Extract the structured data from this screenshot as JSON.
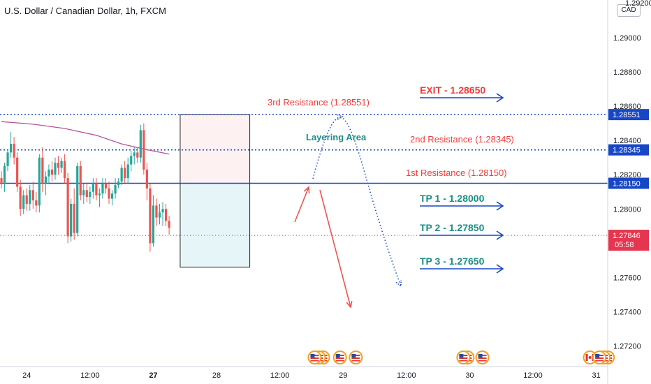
{
  "title": "U.S. Dollar / Canadian Dollar, 1h, FXCM",
  "currency_badge": "CAD",
  "top_partial_tick": "1.29200",
  "colors": {
    "up": "#26a69a",
    "down": "#ef5350",
    "resistance_text": "#ef3d3d",
    "tp_text": "#1b8e86",
    "arrow_blue": "#1847c5",
    "ma": "#b5559a",
    "price_label": "#e5354f",
    "level_label": "#1847c5",
    "upper_zone": "#fdf1f1",
    "lower_zone": "#e6f6f8"
  },
  "chart_data": {
    "type": "candlestick",
    "title": "U.S. Dollar / Canadian Dollar, 1h, FXCM",
    "ylim": [
      1.2708,
      1.2922
    ],
    "y_ticks": [
      {
        "v": 1.29,
        "label": "1.29000"
      },
      {
        "v": 1.288,
        "label": "1.28800"
      },
      {
        "v": 1.286,
        "label": "1.28600"
      },
      {
        "v": 1.284,
        "label": "1.28400"
      },
      {
        "v": 1.282,
        "label": "1.28200"
      },
      {
        "v": 1.28,
        "label": "1.28000"
      },
      {
        "v": 1.278,
        "label": "1.27800"
      },
      {
        "v": 1.276,
        "label": "1.27600"
      },
      {
        "v": 1.274,
        "label": "1.27400"
      },
      {
        "v": 1.272,
        "label": "1.27200"
      }
    ],
    "x_ticks": [
      {
        "i": 8,
        "label": "24",
        "bold": false
      },
      {
        "i": 28,
        "label": "12:00",
        "bold": false
      },
      {
        "i": 48,
        "label": "27",
        "bold": true
      },
      {
        "i": 68,
        "label": "28",
        "bold": false
      },
      {
        "i": 88,
        "label": "12:00",
        "bold": false
      },
      {
        "i": 108,
        "label": "29",
        "bold": false
      },
      {
        "i": 128,
        "label": "12:00",
        "bold": false
      },
      {
        "i": 148,
        "label": "30",
        "bold": false
      },
      {
        "i": 168,
        "label": "12:00",
        "bold": false
      },
      {
        "i": 188,
        "label": "31",
        "bold": false
      }
    ],
    "candles": [
      [
        1.2818,
        1.2822,
        1.2812,
        1.2815
      ],
      [
        1.2815,
        1.2827,
        1.281,
        1.2825
      ],
      [
        1.2825,
        1.2835,
        1.2822,
        1.2833
      ],
      [
        1.2833,
        1.2845,
        1.283,
        1.2838
      ],
      [
        1.2838,
        1.2842,
        1.2826,
        1.283
      ],
      [
        1.283,
        1.2833,
        1.281,
        1.2813
      ],
      [
        1.2813,
        1.2817,
        1.2796,
        1.28
      ],
      [
        1.28,
        1.2811,
        1.2797,
        1.2808
      ],
      [
        1.2808,
        1.2812,
        1.2799,
        1.2803
      ],
      [
        1.2803,
        1.2814,
        1.2799,
        1.2811
      ],
      [
        1.2811,
        1.2816,
        1.28,
        1.2805
      ],
      [
        1.2805,
        1.281,
        1.2798,
        1.2802
      ],
      [
        1.2802,
        1.2832,
        1.2798,
        1.283
      ],
      [
        1.283,
        1.2836,
        1.281,
        1.2815
      ],
      [
        1.2815,
        1.2822,
        1.2808,
        1.2819
      ],
      [
        1.2819,
        1.2826,
        1.2815,
        1.2823
      ],
      [
        1.2823,
        1.2828,
        1.2816,
        1.282
      ],
      [
        1.282,
        1.283,
        1.2817,
        1.2827
      ],
      [
        1.2827,
        1.2831,
        1.282,
        1.2824
      ],
      [
        1.2824,
        1.283,
        1.2821,
        1.2828
      ],
      [
        1.2828,
        1.2832,
        1.2815,
        1.2818
      ],
      [
        1.2818,
        1.2821,
        1.278,
        1.2784
      ],
      [
        1.2784,
        1.2806,
        1.2781,
        1.2803
      ],
      [
        1.2803,
        1.2812,
        1.2782,
        1.2786
      ],
      [
        1.2786,
        1.2827,
        1.2784,
        1.2825
      ],
      [
        1.2825,
        1.2828,
        1.2805,
        1.2808
      ],
      [
        1.2808,
        1.2815,
        1.2803,
        1.2811
      ],
      [
        1.2811,
        1.2815,
        1.2804,
        1.2807
      ],
      [
        1.2807,
        1.2813,
        1.2803,
        1.281
      ],
      [
        1.281,
        1.2818,
        1.2806,
        1.2815
      ],
      [
        1.2815,
        1.2818,
        1.2805,
        1.2808
      ],
      [
        1.2808,
        1.2812,
        1.2801,
        1.2809
      ],
      [
        1.2809,
        1.2818,
        1.2806,
        1.2815
      ],
      [
        1.2815,
        1.2818,
        1.2809,
        1.2812
      ],
      [
        1.2812,
        1.2816,
        1.2803,
        1.2806
      ],
      [
        1.2806,
        1.2811,
        1.2802,
        1.2809
      ],
      [
        1.2809,
        1.2818,
        1.2806,
        1.2814
      ],
      [
        1.2814,
        1.2818,
        1.2812,
        1.2816
      ],
      [
        1.2816,
        1.2826,
        1.2814,
        1.2824
      ],
      [
        1.2824,
        1.2828,
        1.2815,
        1.2818
      ],
      [
        1.2818,
        1.283,
        1.2815,
        1.2826
      ],
      [
        1.2826,
        1.2834,
        1.2822,
        1.2831
      ],
      [
        1.2831,
        1.2836,
        1.2826,
        1.2833
      ],
      [
        1.2833,
        1.2836,
        1.2827,
        1.283
      ],
      [
        1.283,
        1.2849,
        1.2827,
        1.2846
      ],
      [
        1.2846,
        1.285,
        1.282,
        1.2823
      ],
      [
        1.2823,
        1.2827,
        1.2805,
        1.2812
      ],
      [
        1.2812,
        1.2815,
        1.2775,
        1.278
      ],
      [
        1.278,
        1.2808,
        1.2778,
        1.2802
      ],
      [
        1.2802,
        1.2806,
        1.279,
        1.2795
      ],
      [
        1.2795,
        1.2803,
        1.2791,
        1.2798
      ],
      [
        1.2798,
        1.2804,
        1.279,
        1.28
      ],
      [
        1.28,
        1.2803,
        1.279,
        1.2793
      ],
      [
        1.2793,
        1.2796,
        1.2785,
        1.2789
      ]
    ],
    "levels": [
      {
        "v": 1.28551,
        "label": "1.28551",
        "style": "dotted"
      },
      {
        "v": 1.28345,
        "label": "1.28345",
        "style": "dotted"
      },
      {
        "v": 1.2815,
        "label": "1.28150",
        "style": "solid"
      }
    ],
    "current_price": {
      "v": 1.27846,
      "label": "1.27846",
      "countdown": "05:58"
    },
    "moving_average": [
      {
        "i": 0,
        "v": 1.2851
      },
      {
        "i": 10,
        "v": 1.28495
      },
      {
        "i": 20,
        "v": 1.2847
      },
      {
        "i": 30,
        "v": 1.2843
      },
      {
        "i": 38,
        "v": 1.2838
      },
      {
        "i": 45,
        "v": 1.2835
      },
      {
        "i": 53,
        "v": 1.2832
      }
    ],
    "zones": [
      {
        "name": "layering",
        "i0": 56.5,
        "i1": 78.5,
        "v0": 1.2815,
        "v1": 1.28551
      },
      {
        "name": "target",
        "i0": 56.5,
        "i1": 78.5,
        "v0": 1.2766,
        "v1": 1.2815
      }
    ],
    "annotations": {
      "layering_label": "Layering Area",
      "res3": "3rd Resistance (1.28551)",
      "res2": "2nd Resistance (1.28345)",
      "res1": "1st Resistance (1.28150)",
      "exit": "EXIT - 1.28650",
      "tp1": "TP 1 - 1.28000",
      "tp2": "TP 2 - 1.27850",
      "tp3": "TP 3 - 1.27650"
    },
    "event_markers": [
      {
        "i": 99,
        "kind": "usd",
        "count": 3
      },
      {
        "i": 107,
        "kind": "usd",
        "count": 1
      },
      {
        "i": 112,
        "kind": "usd",
        "count": 1
      },
      {
        "i": 146,
        "kind": "usd",
        "count": 2
      },
      {
        "i": 152,
        "kind": "usd",
        "count": 1
      },
      {
        "i": 186,
        "kind": "cad",
        "count": 1
      },
      {
        "i": 189,
        "kind": "usd",
        "count": 3
      }
    ]
  }
}
